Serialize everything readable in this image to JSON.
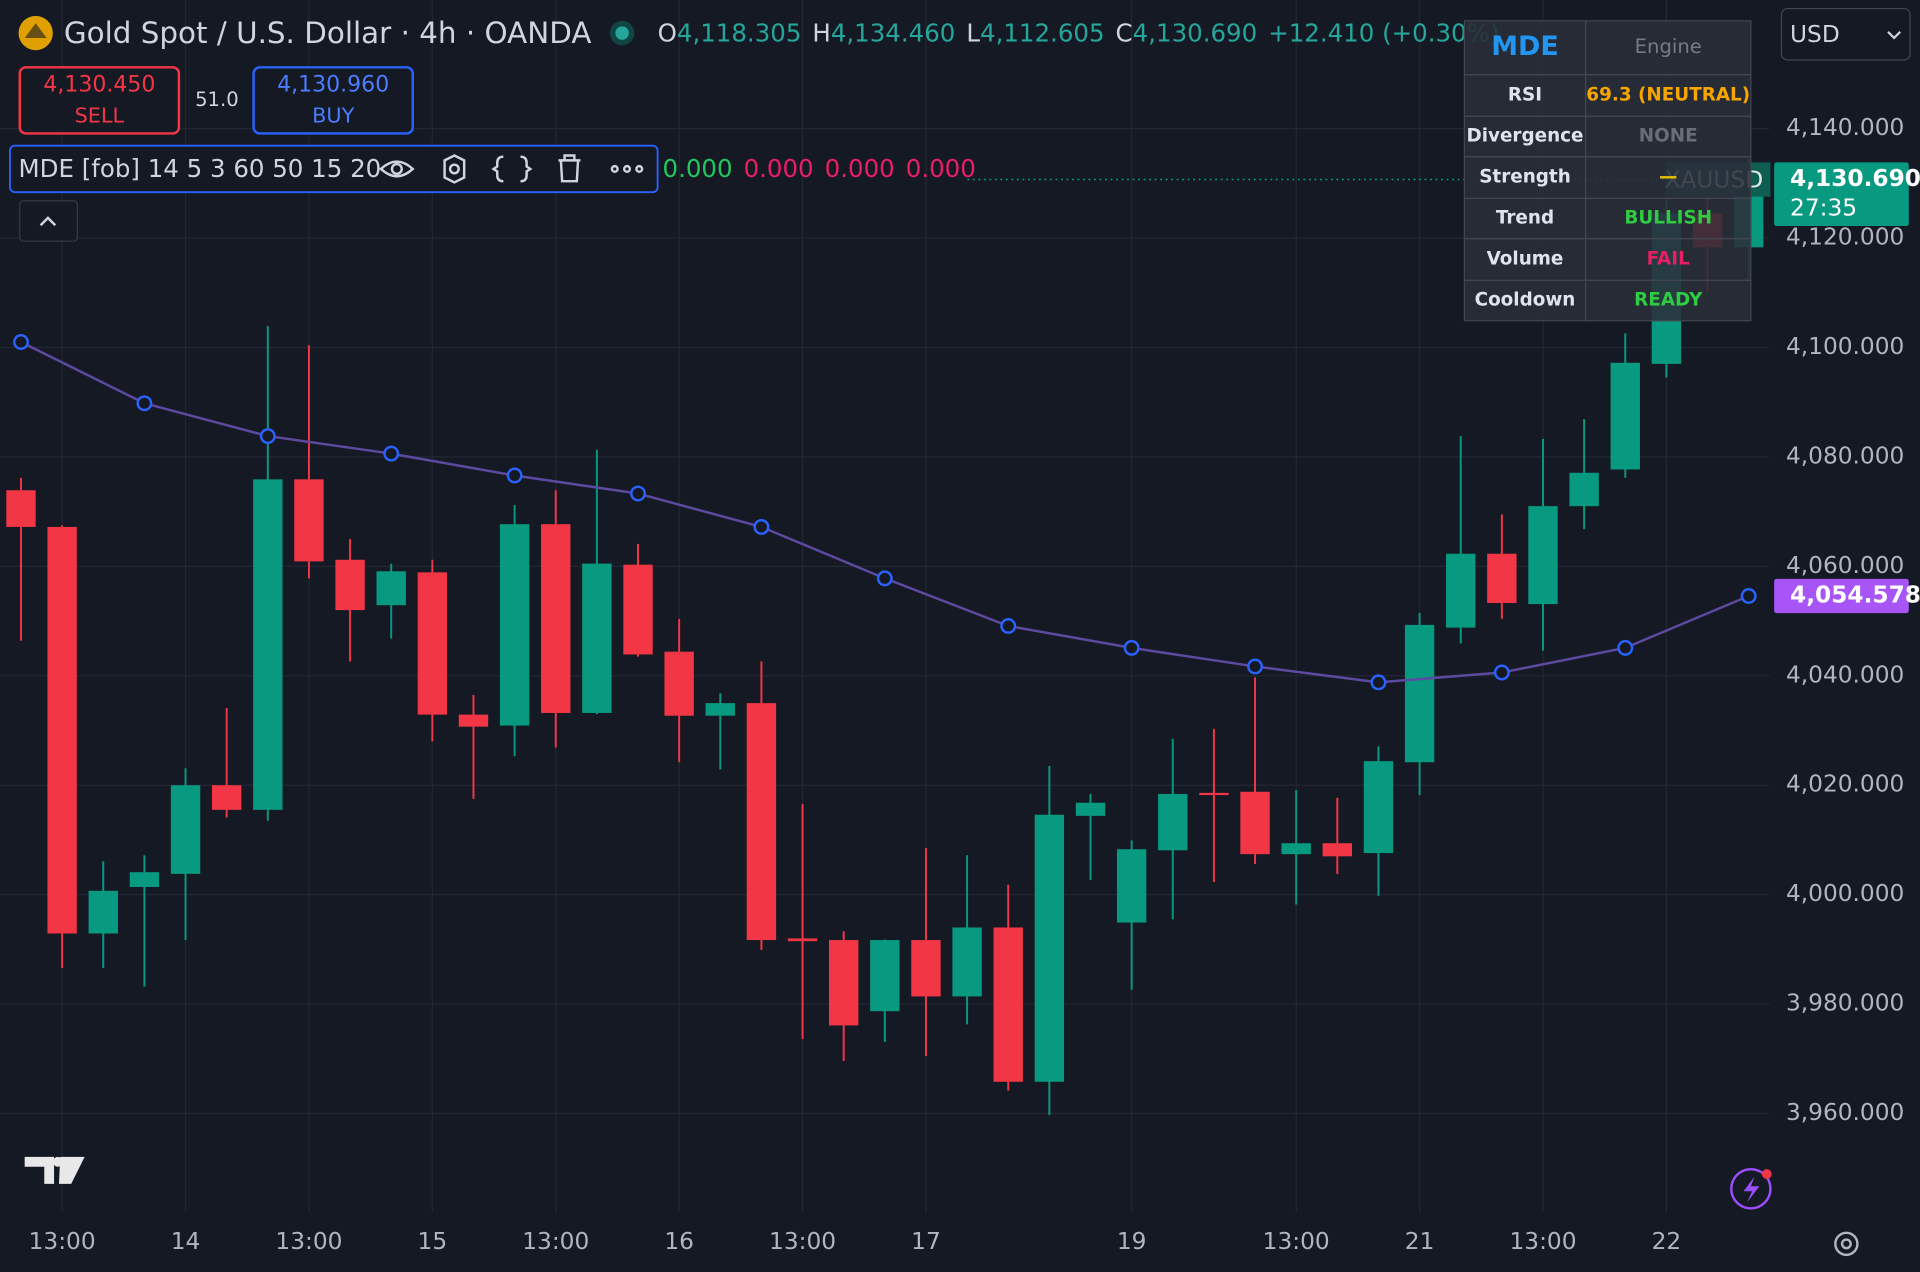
{
  "header": {
    "symbol": "Gold Spot / U.S. Dollar · 4h · OANDA",
    "ohlc": [
      {
        "label": "O",
        "value": "4,118.305"
      },
      {
        "label": "H",
        "value": "4,134.460"
      },
      {
        "label": "L",
        "value": "4,112.605"
      },
      {
        "label": "C",
        "value": "4,130.690"
      }
    ],
    "change": "+12.410 (+0.30%)",
    "sell": {
      "price": "4,130.450",
      "label": "SELL"
    },
    "spread": "51.0",
    "buy": {
      "price": "4,130.960",
      "label": "BUY"
    },
    "currency": "USD"
  },
  "indicator": {
    "label": "MDE [fob] 14 5 3 60 50 15 20",
    "values": [
      {
        "text": "0.000",
        "color": "#22c55e"
      },
      {
        "text": "0.000",
        "color": "#e91e63"
      },
      {
        "text": "0.000",
        "color": "#e91e63"
      },
      {
        "text": "0.000",
        "color": "#e91e63"
      }
    ]
  },
  "table": {
    "header": [
      "MDE",
      "Engine"
    ],
    "rows": [
      [
        "RSI",
        "69.3 (NEUTRAL)"
      ],
      [
        "Divergence",
        "NONE"
      ],
      [
        "Strength",
        "—"
      ],
      [
        "Trend",
        "BULLISH"
      ],
      [
        "Volume",
        "FAIL"
      ],
      [
        "Cooldown",
        "READY"
      ]
    ],
    "value_colors": [
      "#f7a600",
      "#6a6d78",
      "#e6c200",
      "#2ecc40",
      "#e91e63",
      "#2ecc40"
    ]
  },
  "chart_data": {
    "type": "candlestick",
    "watermark": "XAUUSD",
    "categories": [
      null,
      "13:00",
      null,
      null,
      "14",
      null,
      null,
      "13:00",
      null,
      null,
      "15",
      null,
      null,
      "13:00",
      null,
      null,
      "16",
      null,
      null,
      "13:00",
      null,
      null,
      "17",
      null,
      null,
      null,
      null,
      "19",
      null,
      null,
      null,
      "13:00",
      null,
      null,
      "21",
      null,
      null,
      "13:00",
      null,
      null,
      "22",
      null,
      null
    ],
    "ohlc": [
      [
        4073.9,
        4076.2,
        4046.4,
        4067.2
      ],
      [
        4067.2,
        4067.5,
        3986.6,
        3992.9
      ],
      [
        3992.9,
        4006.1,
        3986.6,
        4000.7
      ],
      [
        4001.4,
        4007.2,
        3983.2,
        4004.1
      ],
      [
        4003.8,
        4023.1,
        3991.7,
        4020.0
      ],
      [
        4020.0,
        4034.1,
        4014.1,
        4015.5
      ],
      [
        4015.5,
        4103.9,
        4013.5,
        4075.9
      ],
      [
        4075.9,
        4100.4,
        4057.8,
        4060.9
      ],
      [
        4061.2,
        4065.0,
        4042.6,
        4052.0
      ],
      [
        4052.9,
        4060.5,
        4046.8,
        4059.1
      ],
      [
        4058.9,
        4061.2,
        4028.0,
        4032.9
      ],
      [
        4032.9,
        4036.5,
        4017.5,
        4030.7
      ],
      [
        4030.9,
        4071.2,
        4025.3,
        4067.7
      ],
      [
        4067.7,
        4073.9,
        4026.9,
        4033.2
      ],
      [
        4033.2,
        4081.3,
        4033.0,
        4060.5
      ],
      [
        4060.3,
        4064.1,
        4043.5,
        4043.9
      ],
      [
        4044.4,
        4050.4,
        4024.2,
        4032.7
      ],
      [
        4032.7,
        4036.8,
        4022.9,
        4035.0
      ],
      [
        4035.0,
        4042.6,
        3989.9,
        3991.7
      ],
      [
        3992.0,
        4016.6,
        3973.6,
        3991.5
      ],
      [
        3991.7,
        3993.3,
        3969.6,
        3976.1
      ],
      [
        3978.7,
        3991.8,
        3973.1,
        3991.7
      ],
      [
        3991.7,
        4008.5,
        3970.5,
        3981.4
      ],
      [
        3981.4,
        4007.2,
        3976.3,
        3994.0
      ],
      [
        3994.0,
        4001.8,
        3964.2,
        3965.8
      ],
      [
        3965.8,
        4023.5,
        3959.7,
        4014.6
      ],
      [
        4014.4,
        4018.4,
        4002.7,
        4016.8
      ],
      [
        3994.9,
        4009.9,
        3982.6,
        4008.3
      ],
      [
        4008.1,
        4028.5,
        3995.5,
        4018.4
      ],
      [
        4018.6,
        4030.3,
        4002.3,
        4018.2
      ],
      [
        4018.8,
        4039.7,
        4005.6,
        4007.4
      ],
      [
        4007.4,
        4019.1,
        3998.2,
        4009.4
      ],
      [
        4009.4,
        4017.7,
        4003.8,
        4007.0
      ],
      [
        4007.6,
        4027.1,
        3999.8,
        4024.4
      ],
      [
        4024.2,
        4051.5,
        4018.2,
        4049.3
      ],
      [
        4048.8,
        4083.8,
        4045.9,
        4062.3
      ],
      [
        4062.3,
        4069.5,
        4050.4,
        4053.3
      ],
      [
        4053.1,
        4083.3,
        4044.6,
        4071.0
      ],
      [
        4071.0,
        4086.9,
        4066.8,
        4077.1
      ],
      [
        4077.7,
        4102.6,
        4076.2,
        4097.2
      ],
      [
        4097.0,
        4127.0,
        4094.5,
        4124.5
      ],
      [
        4124.5,
        4128.0,
        4110.0,
        4118.3
      ],
      [
        4118.305,
        4134.46,
        4112.605,
        4130.69
      ]
    ],
    "up_color": "#089981",
    "down_color": "#f23645",
    "overlay": {
      "type": "line",
      "color": "#5d4aa0",
      "marker_color": "#2962ff",
      "x": [
        0,
        3,
        6,
        9,
        12,
        15,
        18,
        21,
        24,
        27,
        30,
        33,
        36,
        39,
        42
      ],
      "values": [
        4101.0,
        4089.8,
        4083.8,
        4080.6,
        4076.6,
        4073.3,
        4067.2,
        4057.8,
        4049.1,
        4045.1,
        4041.7,
        4038.8,
        4040.6,
        4045.1,
        4054.578
      ]
    },
    "ylim": [
      3942,
      4163.5
    ],
    "yticks": [
      {
        "value": 3960,
        "label": "3,960.000"
      },
      {
        "value": 3980,
        "label": "3,980.000"
      },
      {
        "value": 4000,
        "label": "4,000.000"
      },
      {
        "value": 4020,
        "label": "4,020.000"
      },
      {
        "value": 4040,
        "label": "4,040.000"
      },
      {
        "value": 4060,
        "label": "4,060.000"
      },
      {
        "value": 4080,
        "label": "4,080.000"
      },
      {
        "value": 4100,
        "label": "4,100.000"
      },
      {
        "value": 4120,
        "label": "4,120.000"
      },
      {
        "value": 4140,
        "label": "4,140.000"
      }
    ],
    "grid": true,
    "price_tags": [
      {
        "value": 4130.69,
        "label": "4,130.690",
        "timer": "27:35",
        "color": "#089981"
      },
      {
        "value": 4054.578,
        "label": "4,054.578",
        "color": "#a855f7"
      }
    ]
  }
}
